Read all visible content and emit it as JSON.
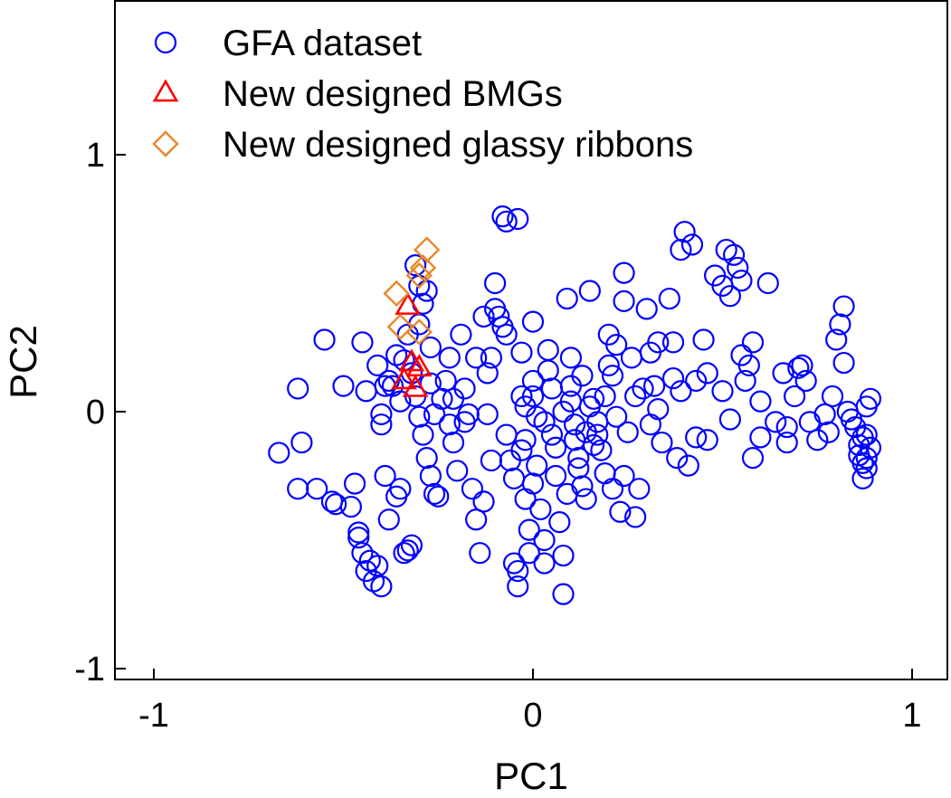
{
  "chart_data": {
    "type": "scatter",
    "xlabel": "PC1",
    "ylabel": "PC2",
    "xlim": [
      -1.1,
      1.1
    ],
    "ylim": [
      -1.05,
      1.6
    ],
    "xticks": [
      -1,
      0,
      1
    ],
    "yticks": [
      -1,
      0,
      1
    ],
    "xtick_labels": [
      "-1",
      "0",
      "1"
    ],
    "ytick_labels": [
      "-1",
      "0",
      "1"
    ],
    "grid": false,
    "legend_position": "top-left",
    "series": [
      {
        "name": "GFA dataset",
        "marker": "circle",
        "color": "#0000ff",
        "points": [
          [
            -0.67,
            -0.16
          ],
          [
            -0.62,
            0.09
          ],
          [
            -0.62,
            -0.3
          ],
          [
            -0.61,
            -0.12
          ],
          [
            -0.57,
            -0.3
          ],
          [
            -0.55,
            0.28
          ],
          [
            -0.53,
            -0.35
          ],
          [
            -0.52,
            -0.36
          ],
          [
            -0.47,
            -0.28
          ],
          [
            -0.46,
            -0.47
          ],
          [
            -0.46,
            -0.49
          ],
          [
            -0.45,
            -0.55
          ],
          [
            -0.44,
            -0.62
          ],
          [
            -0.43,
            -0.58
          ],
          [
            -0.42,
            -0.66
          ],
          [
            -0.41,
            -0.6
          ],
          [
            -0.4,
            -0.68
          ],
          [
            -0.39,
            -0.25
          ],
          [
            -0.4,
            -0.01
          ],
          [
            -0.4,
            -0.05
          ],
          [
            -0.39,
            0.1
          ],
          [
            -0.38,
            0.12
          ],
          [
            -0.37,
            0.1
          ],
          [
            -0.36,
            0.22
          ],
          [
            -0.36,
            -0.33
          ],
          [
            -0.35,
            -0.3
          ],
          [
            -0.34,
            -0.55
          ],
          [
            -0.33,
            -0.54
          ],
          [
            -0.32,
            -0.52
          ],
          [
            -0.31,
            0.57
          ],
          [
            -0.3,
            0.49
          ],
          [
            -0.29,
            0.42
          ],
          [
            -0.28,
            0.47
          ],
          [
            -0.3,
            0.34
          ],
          [
            -0.33,
            0.3
          ],
          [
            -0.34,
            0.2
          ],
          [
            -0.32,
            0.15
          ],
          [
            -0.31,
            0.06
          ],
          [
            -0.3,
            -0.02
          ],
          [
            -0.29,
            -0.09
          ],
          [
            -0.28,
            -0.18
          ],
          [
            -0.27,
            -0.25
          ],
          [
            -0.26,
            -0.32
          ],
          [
            -0.25,
            -0.33
          ],
          [
            -0.24,
            0.05
          ],
          [
            -0.23,
            0.12
          ],
          [
            -0.22,
            0.21
          ],
          [
            -0.22,
            -0.05
          ],
          [
            -0.21,
            -0.12
          ],
          [
            -0.2,
            -0.23
          ],
          [
            -0.19,
            0.3
          ],
          [
            -0.18,
            0.09
          ],
          [
            -0.17,
            -0.01
          ],
          [
            -0.16,
            -0.3
          ],
          [
            -0.15,
            -0.42
          ],
          [
            -0.14,
            -0.55
          ],
          [
            -0.13,
            -0.35
          ],
          [
            -0.12,
            0.15
          ],
          [
            -0.11,
            0.21
          ],
          [
            -0.1,
            0.5
          ],
          [
            -0.1,
            0.4
          ],
          [
            -0.09,
            0.37
          ],
          [
            -0.08,
            0.33
          ],
          [
            -0.07,
            0.3
          ],
          [
            -0.07,
            -0.09
          ],
          [
            -0.06,
            -0.19
          ],
          [
            -0.05,
            -0.26
          ],
          [
            -0.05,
            -0.59
          ],
          [
            -0.04,
            -0.62
          ],
          [
            -0.04,
            -0.68
          ],
          [
            -0.03,
            0.23
          ],
          [
            -0.03,
            0.06
          ],
          [
            -0.02,
            -0.11
          ],
          [
            -0.02,
            -0.34
          ],
          [
            -0.01,
            -0.46
          ],
          [
            -0.01,
            -0.55
          ],
          [
            0.0,
            0.35
          ],
          [
            0.0,
            0.12
          ],
          [
            0.01,
            -0.02
          ],
          [
            0.01,
            -0.21
          ],
          [
            0.02,
            -0.38
          ],
          [
            0.03,
            -0.5
          ],
          [
            0.03,
            -0.59
          ],
          [
            0.04,
            0.24
          ],
          [
            0.05,
            0.09
          ],
          [
            0.05,
            -0.09
          ],
          [
            0.06,
            -0.25
          ],
          [
            0.07,
            -0.43
          ],
          [
            0.08,
            -0.56
          ],
          [
            0.08,
            -0.71
          ],
          [
            0.09,
            0.44
          ],
          [
            0.1,
            0.21
          ],
          [
            0.1,
            0.04
          ],
          [
            0.11,
            -0.11
          ],
          [
            0.12,
            -0.18
          ],
          [
            0.13,
            -0.29
          ],
          [
            0.14,
            -0.34
          ],
          [
            0.15,
            0.47
          ],
          [
            0.16,
            0.05
          ],
          [
            0.17,
            -0.04
          ],
          [
            0.18,
            -0.15
          ],
          [
            0.19,
            -0.24
          ],
          [
            0.2,
            0.3
          ],
          [
            0.21,
            0.14
          ],
          [
            0.22,
            0.26
          ],
          [
            0.22,
            -0.02
          ],
          [
            0.23,
            -0.39
          ],
          [
            0.24,
            0.54
          ],
          [
            0.25,
            -0.08
          ],
          [
            0.27,
            0.06
          ],
          [
            0.28,
            -0.3
          ],
          [
            0.3,
            0.4
          ],
          [
            0.31,
            0.23
          ],
          [
            0.32,
            0.1
          ],
          [
            0.34,
            -0.12
          ],
          [
            0.36,
            0.44
          ],
          [
            0.37,
            0.27
          ],
          [
            0.38,
            -0.18
          ],
          [
            0.39,
            0.63
          ],
          [
            0.4,
            0.7
          ],
          [
            0.42,
            0.65
          ],
          [
            0.43,
            0.12
          ],
          [
            0.45,
            0.28
          ],
          [
            0.46,
            -0.11
          ],
          [
            0.48,
            0.53
          ],
          [
            0.5,
            0.49
          ],
          [
            0.51,
            0.63
          ],
          [
            0.52,
            0.45
          ],
          [
            0.53,
            0.61
          ],
          [
            0.54,
            0.56
          ],
          [
            0.55,
            0.51
          ],
          [
            0.55,
            0.22
          ],
          [
            0.57,
            0.18
          ],
          [
            0.58,
            -0.18
          ],
          [
            0.6,
            -0.1
          ],
          [
            0.62,
            0.5
          ],
          [
            0.64,
            -0.04
          ],
          [
            0.66,
            0.15
          ],
          [
            0.67,
            -0.12
          ],
          [
            0.69,
            0.06
          ],
          [
            0.7,
            0.17
          ],
          [
            0.71,
            0.18
          ],
          [
            0.73,
            -0.04
          ],
          [
            0.75,
            -0.11
          ],
          [
            0.77,
            -0.01
          ],
          [
            0.79,
            0.06
          ],
          [
            0.8,
            0.28
          ],
          [
            0.81,
            0.34
          ],
          [
            0.82,
            0.41
          ],
          [
            0.82,
            0.19
          ],
          [
            0.83,
            0.0
          ],
          [
            0.84,
            -0.03
          ],
          [
            0.85,
            -0.06
          ],
          [
            0.86,
            -0.13
          ],
          [
            0.86,
            -0.17
          ],
          [
            0.87,
            -0.2
          ],
          [
            0.87,
            -0.26
          ],
          [
            0.88,
            -0.22
          ],
          [
            0.88,
            -0.09
          ],
          [
            0.88,
            0.02
          ],
          [
            0.89,
            -0.14
          ],
          [
            0.89,
            0.05
          ],
          [
            0.88,
            -0.18
          ],
          [
            0.87,
            -0.1
          ],
          [
            -0.08,
            0.76
          ],
          [
            -0.07,
            0.74
          ],
          [
            -0.04,
            0.75
          ],
          [
            0.24,
            0.43
          ],
          [
            0.33,
            0.27
          ],
          [
            0.43,
            -0.1
          ],
          [
            0.58,
            0.27
          ],
          [
            0.67,
            -0.06
          ],
          [
            -0.48,
            -0.37
          ],
          [
            -0.38,
            -0.42
          ],
          [
            -0.27,
            0.25
          ],
          [
            -0.15,
            0.21
          ],
          [
            -0.13,
            0.37
          ],
          [
            0.11,
            -0.05
          ],
          [
            0.15,
            0.02
          ],
          [
            0.19,
            0.06
          ],
          [
            0.08,
            0.0
          ],
          [
            0.06,
            -0.14
          ],
          [
            0.12,
            -0.22
          ],
          [
            0.14,
            -0.08
          ],
          [
            0.03,
            -0.04
          ],
          [
            -0.03,
            -0.15
          ],
          [
            0.0,
            -0.28
          ],
          [
            0.09,
            -0.32
          ],
          [
            0.17,
            -0.09
          ],
          [
            0.24,
            -0.25
          ],
          [
            0.27,
            -0.41
          ],
          [
            0.33,
            0.01
          ],
          [
            0.41,
            -0.21
          ],
          [
            0.46,
            0.15
          ],
          [
            -0.44,
            0.08
          ],
          [
            -0.35,
            0.04
          ],
          [
            -0.27,
            0.11
          ],
          [
            -0.18,
            -0.04
          ],
          [
            -0.11,
            -0.19
          ],
          [
            -0.02,
            0.02
          ],
          [
            0.04,
            0.16
          ],
          [
            0.2,
            0.18
          ],
          [
            0.29,
            0.09
          ],
          [
            0.37,
            0.13
          ],
          [
            0.5,
            0.08
          ],
          [
            0.6,
            0.04
          ],
          [
            0.72,
            0.12
          ],
          [
            0.78,
            -0.08
          ],
          [
            -0.5,
            0.1
          ],
          [
            -0.45,
            0.27
          ],
          [
            -0.41,
            0.18
          ],
          [
            -0.26,
            -0.01
          ],
          [
            -0.21,
            0.05
          ],
          [
            -0.12,
            -0.01
          ],
          [
            0.0,
            0.06
          ],
          [
            0.1,
            0.1
          ],
          [
            0.13,
            0.14
          ],
          [
            0.16,
            -0.13
          ],
          [
            0.21,
            -0.3
          ],
          [
            0.26,
            0.21
          ],
          [
            0.31,
            -0.05
          ],
          [
            0.39,
            0.08
          ],
          [
            0.52,
            -0.03
          ],
          [
            0.56,
            0.12
          ]
        ]
      },
      {
        "name": "New designed BMGs",
        "marker": "triangle",
        "color": "#ff0000",
        "points": [
          [
            -0.33,
            0.41
          ],
          [
            -0.32,
            0.19
          ],
          [
            -0.3,
            0.17
          ],
          [
            -0.34,
            0.12
          ],
          [
            -0.31,
            0.09
          ]
        ]
      },
      {
        "name": "New designed glassy ribbons",
        "marker": "diamond",
        "color": "#e8872a",
        "points": [
          [
            -0.28,
            0.63
          ],
          [
            -0.29,
            0.56
          ],
          [
            -0.3,
            0.53
          ],
          [
            -0.36,
            0.46
          ],
          [
            -0.35,
            0.33
          ],
          [
            -0.3,
            0.31
          ]
        ]
      }
    ]
  }
}
